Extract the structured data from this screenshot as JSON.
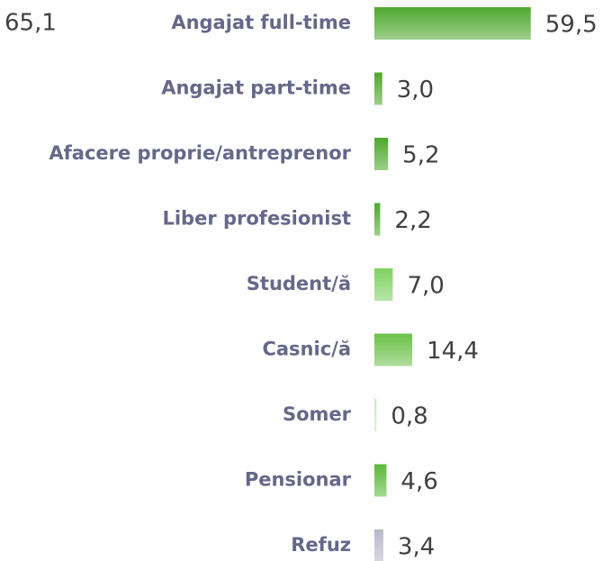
{
  "chart_data": {
    "type": "bar",
    "orientation": "horizontal",
    "annotation": "65,1",
    "categories": [
      "Angajat full-time",
      "Angajat part-time",
      "Afacere proprie/antreprenor",
      "Liber profesionist",
      "Student/ă",
      "Casnic/ă",
      "Somer",
      "Pensionar",
      "Refuz"
    ],
    "values": [
      59.5,
      3.0,
      5.2,
      2.2,
      7.0,
      14.4,
      0.8,
      4.6,
      3.4
    ],
    "value_labels": [
      "59,5",
      "3,0",
      "5,2",
      "2,2",
      "7,0",
      "14,4",
      "0,8",
      "4,6",
      "3,4"
    ],
    "colors": [
      "#4ea72e",
      "#4ea72e",
      "#4ea72e",
      "#4ea72e",
      "#7fd160",
      "#6cc24a",
      "#c9ecb8",
      "#5cb83a",
      "#b8b8cc"
    ]
  }
}
